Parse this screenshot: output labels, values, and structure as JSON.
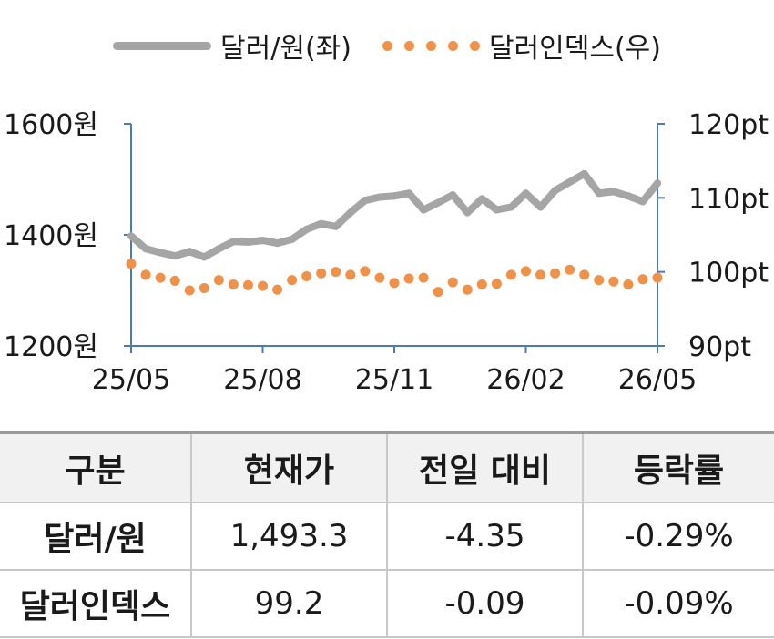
{
  "legend": {
    "series1": "달러/원(좌)",
    "series2": "달러인덱스(우)"
  },
  "colors": {
    "usdkrw": "#a5a5a5",
    "dxy": "#f0914a",
    "axis": "#4f79b5"
  },
  "chart_data": {
    "type": "line",
    "x_tick_labels": [
      "25/05",
      "25/08",
      "25/11",
      "26/02",
      "26/05"
    ],
    "y_left": {
      "tick_labels": [
        "1600원",
        "1400원",
        "1200원"
      ],
      "ticks": [
        1600,
        1400,
        1200
      ],
      "range": [
        1200,
        1600
      ]
    },
    "y_right": {
      "tick_labels": [
        "120pt",
        "110pt",
        "100pt",
        "90pt"
      ],
      "ticks": [
        120,
        110,
        100,
        90
      ],
      "range": [
        90,
        120
      ]
    },
    "series": [
      {
        "name": "달러/원(좌)",
        "axis": "left",
        "style": "line",
        "x": [
          "25/05",
          "25/05",
          "25/06",
          "25/06",
          "25/06",
          "25/07",
          "25/07",
          "25/07",
          "25/08",
          "25/08",
          "25/08",
          "25/09",
          "25/09",
          "25/09",
          "25/10",
          "25/10",
          "25/10",
          "25/11",
          "25/11",
          "25/11",
          "25/12",
          "25/12",
          "25/12",
          "26/01",
          "26/01",
          "26/01",
          "26/02",
          "26/02",
          "26/02",
          "26/03",
          "26/03",
          "26/03",
          "26/04",
          "26/04",
          "26/04",
          "26/05",
          "26/05"
        ],
        "values": [
          1398,
          1375,
          1368,
          1362,
          1370,
          1360,
          1375,
          1388,
          1387,
          1390,
          1385,
          1392,
          1410,
          1420,
          1415,
          1440,
          1462,
          1468,
          1470,
          1475,
          1445,
          1458,
          1472,
          1440,
          1465,
          1445,
          1450,
          1475,
          1450,
          1480,
          1495,
          1510,
          1475,
          1478,
          1470,
          1460,
          1493
        ]
      },
      {
        "name": "달러인덱스(우)",
        "axis": "right",
        "style": "dotted",
        "x": [
          "25/05",
          "25/05",
          "25/06",
          "25/06",
          "25/06",
          "25/07",
          "25/07",
          "25/07",
          "25/08",
          "25/08",
          "25/08",
          "25/09",
          "25/09",
          "25/09",
          "25/10",
          "25/10",
          "25/10",
          "25/11",
          "25/11",
          "25/11",
          "25/12",
          "25/12",
          "25/12",
          "26/01",
          "26/01",
          "26/01",
          "26/02",
          "26/02",
          "26/02",
          "26/03",
          "26/03",
          "26/03",
          "26/04",
          "26/04",
          "26/04",
          "26/05",
          "26/05"
        ],
        "values": [
          101.1,
          99.6,
          99.2,
          98.8,
          97.5,
          97.8,
          98.9,
          98.3,
          98.2,
          98.1,
          97.6,
          98.9,
          99.4,
          99.8,
          100.0,
          99.6,
          100.1,
          99.2,
          98.5,
          99.1,
          99.2,
          97.3,
          98.6,
          97.6,
          98.3,
          98.4,
          99.6,
          100.1,
          99.6,
          99.8,
          100.3,
          99.6,
          98.9,
          98.7,
          98.3,
          99.0,
          99.2
        ]
      }
    ]
  },
  "table": {
    "headers": [
      "구분",
      "현재가",
      "전일 대비",
      "등락률"
    ],
    "rows": [
      [
        "달러/원",
        "1,493.3",
        "-4.35",
        "-0.29%"
      ],
      [
        "달러인덱스",
        "99.2",
        "-0.09",
        "-0.09%"
      ]
    ]
  }
}
